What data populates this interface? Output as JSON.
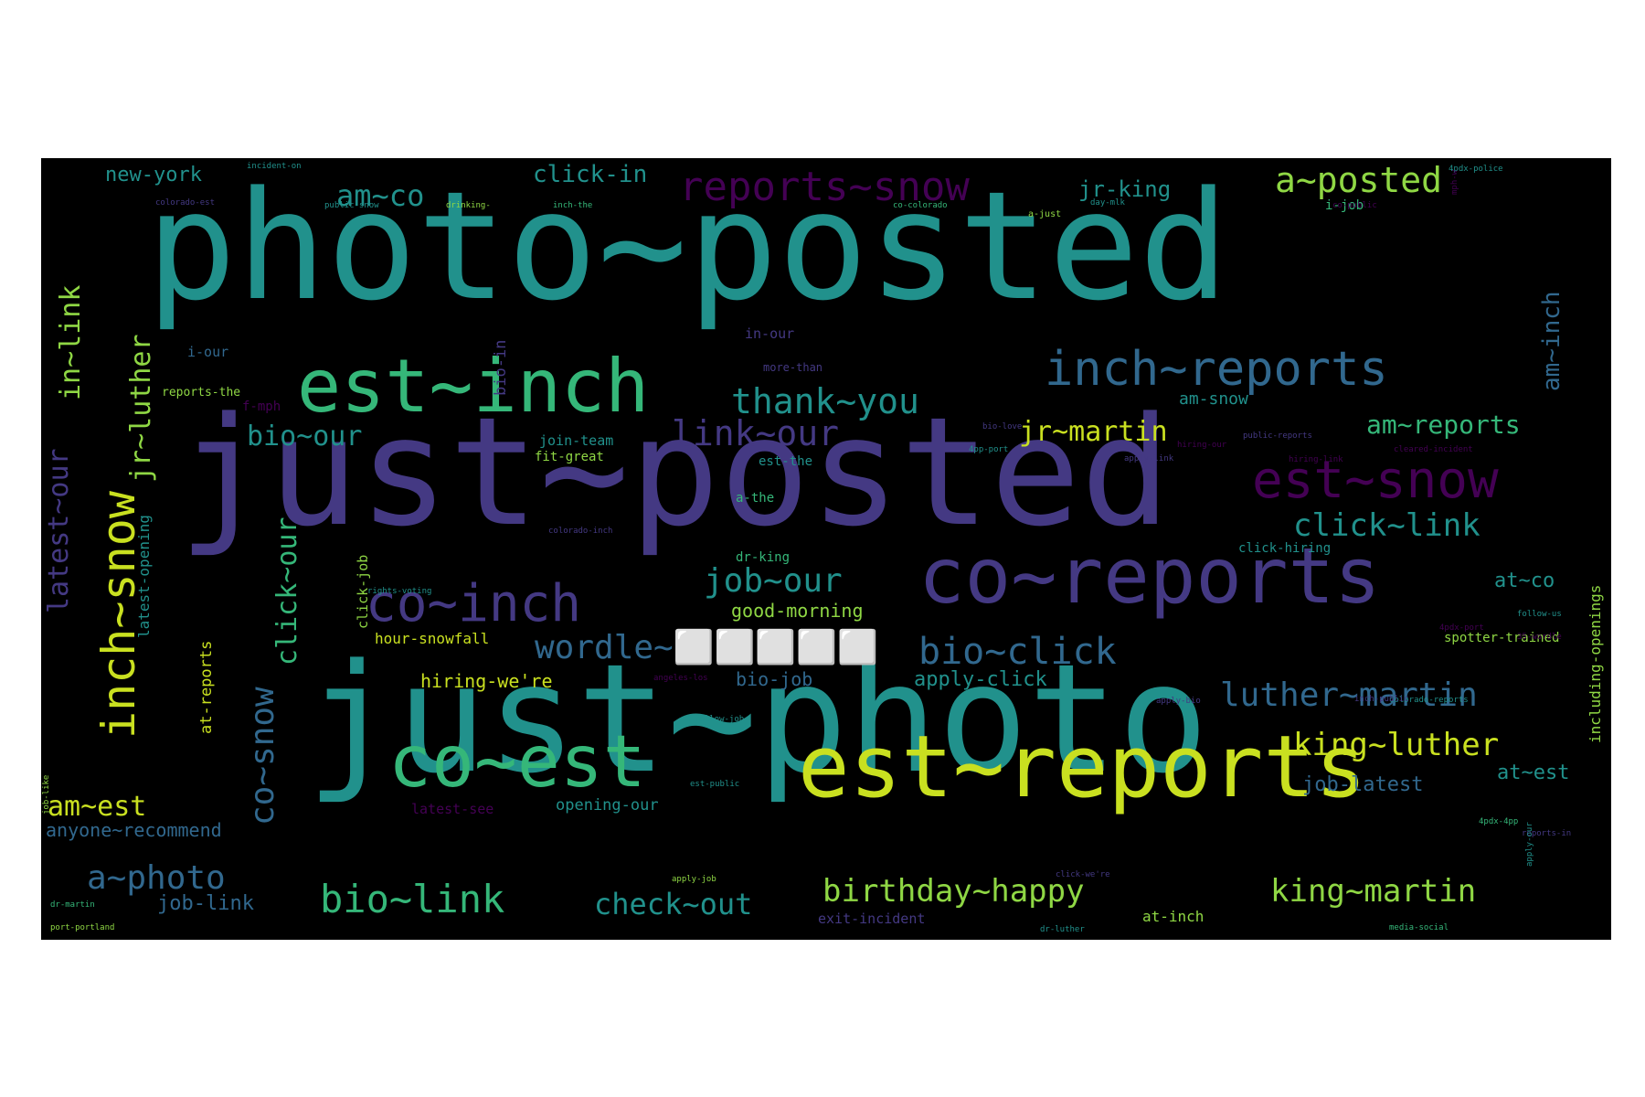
{
  "palette": {
    "yellow": "#c9e020",
    "lime": "#8fd744",
    "green": "#35b779",
    "teal": "#21918c",
    "blue": "#31688e",
    "indigo": "#443983",
    "purple": "#440154",
    "background": "#000000"
  },
  "words": [
    {
      "text": "photo~posted"
    },
    {
      "text": "just~posted"
    },
    {
      "text": "just~photo"
    },
    {
      "text": "est~reports"
    },
    {
      "text": "co~reports"
    },
    {
      "text": "est~inch"
    },
    {
      "text": "inch~reports"
    },
    {
      "text": "co~est"
    },
    {
      "text": "co~inch"
    },
    {
      "text": "inch~snow"
    },
    {
      "text": "est~snow"
    },
    {
      "text": "reports~snow"
    },
    {
      "text": "a~posted"
    },
    {
      "text": "bio~link"
    },
    {
      "text": "birthday~happy"
    },
    {
      "text": "king~martin"
    },
    {
      "text": "check~out"
    },
    {
      "text": "a~photo"
    },
    {
      "text": "luther~martin"
    },
    {
      "text": "king~luther"
    },
    {
      "text": "bio~click"
    },
    {
      "text": "wordle~⬜⬜⬜⬜⬜"
    },
    {
      "text": "job~our"
    },
    {
      "text": "click~link"
    },
    {
      "text": "am~reports"
    },
    {
      "text": "jr~martin"
    },
    {
      "text": "thank~you"
    },
    {
      "text": "link~our"
    },
    {
      "text": "bio~our"
    },
    {
      "text": "am~co"
    },
    {
      "text": "jr-king"
    },
    {
      "text": "click-in"
    },
    {
      "text": "new-york"
    },
    {
      "text": "am~est"
    },
    {
      "text": "co~snow"
    },
    {
      "text": "click~our"
    },
    {
      "text": "jr~luther"
    },
    {
      "text": "latest~our"
    },
    {
      "text": "in~link"
    },
    {
      "text": "am~inch"
    },
    {
      "text": "at~co"
    },
    {
      "text": "at~est"
    },
    {
      "text": "job-latest"
    },
    {
      "text": "job-link"
    },
    {
      "text": "anyone~recommend"
    },
    {
      "text": "good-morning"
    },
    {
      "text": "hiring-we're"
    },
    {
      "text": "apply-click"
    },
    {
      "text": "bio-job"
    },
    {
      "text": "hour-snowfall"
    },
    {
      "text": "spotter-trained"
    },
    {
      "text": "click-hiring"
    },
    {
      "text": "est-the"
    },
    {
      "text": "dr-king"
    },
    {
      "text": "a-the"
    },
    {
      "text": "reports-the"
    },
    {
      "text": "i-our"
    },
    {
      "text": "join-team"
    },
    {
      "text": "fit-great"
    },
    {
      "text": "latest-opening"
    },
    {
      "text": "at-reports"
    },
    {
      "text": "including-openings"
    },
    {
      "text": "exit-incident"
    },
    {
      "text": "at-inch"
    },
    {
      "text": "opening-our"
    },
    {
      "text": "latest-see"
    },
    {
      "text": "am-snow"
    },
    {
      "text": "bio-in"
    },
    {
      "text": "in-our"
    },
    {
      "text": "more-than"
    },
    {
      "text": "i-job"
    },
    {
      "text": "public-reports"
    },
    {
      "text": "hiring-link"
    },
    {
      "text": "apply-link"
    },
    {
      "text": "hiring-our"
    },
    {
      "text": "cleared-incident"
    },
    {
      "text": "colorado-inch"
    },
    {
      "text": "colorado-reports"
    },
    {
      "text": "inch-public"
    },
    {
      "text": "follow-job"
    },
    {
      "text": "est-public"
    },
    {
      "text": "apply-job"
    },
    {
      "text": "dr-martin"
    },
    {
      "text": "port-portland"
    },
    {
      "text": "dr-luther"
    },
    {
      "text": "media-social"
    },
    {
      "text": "click-job"
    },
    {
      "text": "f-mph"
    },
    {
      "text": "incident-on"
    },
    {
      "text": "public-snow"
    },
    {
      "text": "drinking-"
    },
    {
      "text": "inch-the"
    },
    {
      "text": "co-colorado"
    },
    {
      "text": "a-just"
    },
    {
      "text": "day-mlk"
    },
    {
      "text": "co-public"
    },
    {
      "text": "colorado-est"
    },
    {
      "text": "4pdx-police"
    },
    {
      "text": "mph-w"
    },
    {
      "text": "rights-voting"
    },
    {
      "text": "angeles-los"
    },
    {
      "text": "apply-bio"
    },
    {
      "text": "follow-us"
    },
    {
      "text": "35-wordle"
    },
    {
      "text": "4pdx-port"
    },
    {
      "text": "4pdx-4pp"
    },
    {
      "text": "reports-in"
    },
    {
      "text": "apply-our"
    },
    {
      "text": "click-we're"
    },
    {
      "text": "bio-love"
    },
    {
      "text": "4pp-port"
    },
    {
      "text": "job-like"
    }
  ]
}
